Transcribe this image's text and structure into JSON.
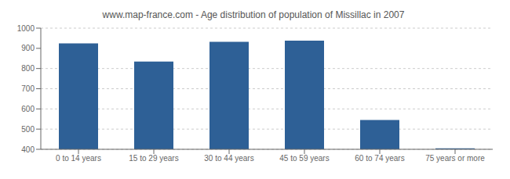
{
  "chart_data": {
    "type": "bar",
    "title": "www.map-france.com - Age distribution of population of Missillac in 2007",
    "categories": [
      "0 to 14 years",
      "15 to 29 years",
      "30 to 44 years",
      "45 to 59 years",
      "60 to 74 years",
      "75 years or more"
    ],
    "values": [
      925,
      835,
      932,
      938,
      545,
      405
    ],
    "color": "#2e6096",
    "ylim": [
      400,
      1000
    ],
    "yticks": [
      400,
      500,
      600,
      700,
      800,
      900,
      1000
    ],
    "grid": true
  }
}
